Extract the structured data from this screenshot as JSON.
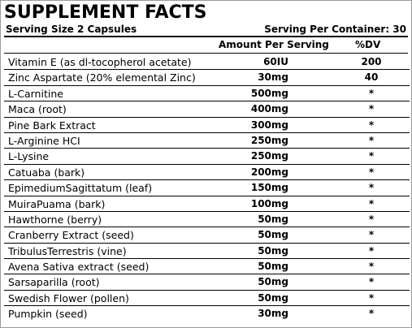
{
  "title": "SUPPLEMENT FACTS",
  "serving_size": "Serving Size 2 Capsules",
  "servings_per_container": "Serving Per Container: 30",
  "columns": {
    "amount": "Amount Per Serving",
    "dv": "%DV"
  },
  "ingredients": [
    {
      "name": "Vitamin E (as dl-tocopherol acetate)",
      "amount": "60IU",
      "dv": "200"
    },
    {
      "name": "Zinc Aspartate (20% elemental Zinc)",
      "amount": "30mg",
      "dv": "40"
    },
    {
      "name": "L-Carnitine",
      "amount": "500mg",
      "dv": "*"
    },
    {
      "name": "Maca (root)",
      "amount": "400mg",
      "dv": "*"
    },
    {
      "name": "Pine Bark Extract",
      "amount": "300mg",
      "dv": "*"
    },
    {
      "name": "L-Arginine HCI",
      "amount": "250mg",
      "dv": "*"
    },
    {
      "name": "L-Lysine",
      "amount": "250mg",
      "dv": "*"
    },
    {
      "name": "Catuaba (bark)",
      "amount": "200mg",
      "dv": "*"
    },
    {
      "name": "EpimediumSagittatum (leaf)",
      "amount": "150mg",
      "dv": "*"
    },
    {
      "name": "MuiraPuama (bark)",
      "amount": "100mg",
      "dv": "*"
    },
    {
      "name": "Hawthorne (berry)",
      "amount": "50mg",
      "dv": "*"
    },
    {
      "name": "Cranberry Extract (seed)",
      "amount": "50mg",
      "dv": "*"
    },
    {
      "name": "TribulusTerrestris (vine)",
      "amount": "50mg",
      "dv": "*"
    },
    {
      "name": "Avena Sativa extract (seed)",
      "amount": "50mg",
      "dv": "*"
    },
    {
      "name": "Sarsaparilla (root)",
      "amount": "50mg",
      "dv": "*"
    },
    {
      "name": "Swedish Flower (pollen)",
      "amount": "50mg",
      "dv": "*"
    },
    {
      "name": "Pumpkin (seed)",
      "amount": "30mg",
      "dv": "*"
    }
  ]
}
